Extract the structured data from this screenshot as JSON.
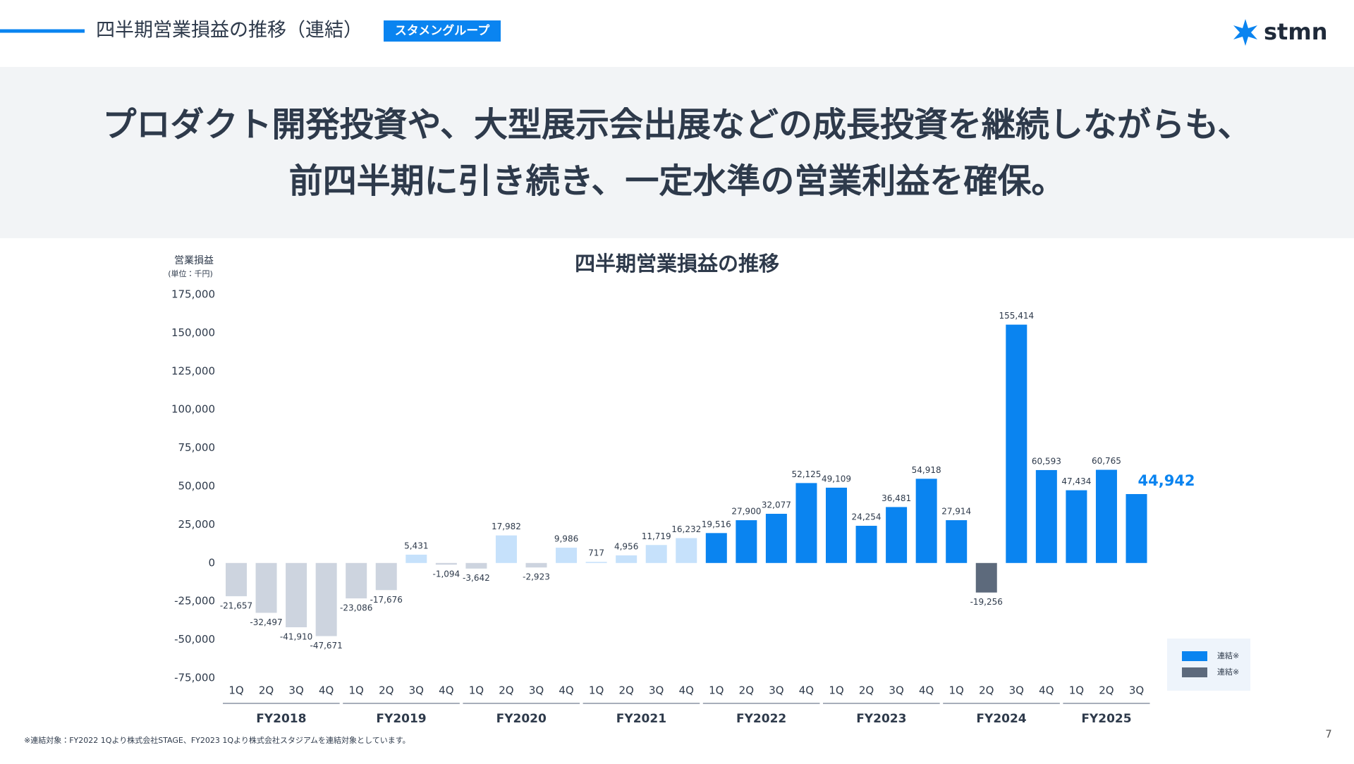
{
  "header": {
    "title": "四半期営業損益の推移（連結）",
    "badge": "スタメングループ",
    "logo": "stmn"
  },
  "headline": [
    "プロダクト開発投資や、大型展示会出展などの成長投資を継続しながらも、",
    "前四半期に引き続き、一定水準の営業利益を確保。"
  ],
  "chart_data": {
    "type": "bar",
    "title": "四半期営業損益の推移",
    "y_label": "営業損益",
    "y_unit": "(単位：千円)",
    "ylim": [
      -75000,
      175000
    ],
    "yticks": [
      {
        "value": -75000,
        "label": "-75,000"
      },
      {
        "value": -50000,
        "label": "-50,000"
      },
      {
        "value": -25000,
        "label": "-25,000"
      },
      0,
      {
        "value": 25000,
        "label": "25,000"
      },
      {
        "value": 50000,
        "label": "50,000"
      },
      {
        "value": 75000,
        "label": "75,000"
      },
      {
        "value": 100000,
        "label": "100,000"
      },
      {
        "value": 125000,
        "label": "125,000"
      },
      {
        "value": 150000,
        "label": "150,000"
      },
      {
        "value": 175000,
        "label": "175,000"
      }
    ],
    "groups": [
      {
        "name": "FY2018",
        "categories": [
          "1Q",
          "2Q",
          "3Q",
          "4Q"
        ],
        "values": [
          -21657,
          -32497,
          -41910,
          -47671
        ],
        "value_labels": [
          "-21,657",
          "-32,497",
          "-41,910",
          "-47,671"
        ],
        "colors": [
          "#cdd4df",
          "#cdd4df",
          "#cdd4df",
          "#cdd4df"
        ]
      },
      {
        "name": "FY2019",
        "categories": [
          "1Q",
          "2Q",
          "3Q",
          "4Q"
        ],
        "values": [
          -23086,
          -17676,
          5431,
          -1094
        ],
        "value_labels": [
          "-23,086",
          "-17,676",
          "5,431",
          "-1,094"
        ],
        "colors": [
          "#cdd4df",
          "#cdd4df",
          "#c6e1fb",
          "#cdd4df"
        ]
      },
      {
        "name": "FY2020",
        "categories": [
          "1Q",
          "2Q",
          "3Q",
          "4Q"
        ],
        "values": [
          -3642,
          17982,
          -2923,
          9986
        ],
        "value_labels": [
          "-3,642",
          "17,982",
          "-2,923",
          "9,986"
        ],
        "colors": [
          "#cdd4df",
          "#c6e1fb",
          "#cdd4df",
          "#c6e1fb"
        ]
      },
      {
        "name": "FY2021",
        "categories": [
          "1Q",
          "2Q",
          "3Q",
          "4Q"
        ],
        "values": [
          717,
          4956,
          11719,
          16232
        ],
        "value_labels": [
          "717",
          "4,956",
          "11,719",
          "16,232"
        ],
        "colors": [
          "#c6e1fb",
          "#c6e1fb",
          "#c6e1fb",
          "#c6e1fb"
        ]
      },
      {
        "name": "FY2022",
        "categories": [
          "1Q",
          "2Q",
          "3Q",
          "4Q"
        ],
        "values": [
          19516,
          27900,
          32077,
          52125
        ],
        "value_labels": [
          "19,516",
          "27,900",
          "32,077",
          "52,125"
        ],
        "colors": [
          "#0a84f0",
          "#0a84f0",
          "#0a84f0",
          "#0a84f0"
        ]
      },
      {
        "name": "FY2023",
        "categories": [
          "1Q",
          "2Q",
          "3Q",
          "4Q"
        ],
        "values": [
          49109,
          24254,
          36481,
          54918
        ],
        "value_labels": [
          "49,109",
          "24,254",
          "36,481",
          "54,918"
        ],
        "colors": [
          "#0a84f0",
          "#0a84f0",
          "#0a84f0",
          "#0a84f0"
        ]
      },
      {
        "name": "FY2024",
        "categories": [
          "1Q",
          "2Q",
          "3Q",
          "4Q"
        ],
        "values": [
          27914,
          -19256,
          155414,
          60593
        ],
        "value_labels": [
          "27,914",
          "-19,256",
          "155,414",
          "60,593"
        ],
        "colors": [
          "#0a84f0",
          "#5d6a7c",
          "#0a84f0",
          "#0a84f0"
        ]
      },
      {
        "name": "FY2025",
        "categories": [
          "1Q",
          "2Q",
          "3Q"
        ],
        "values": [
          47434,
          60765,
          44942
        ],
        "value_labels": [
          "47,434",
          "60,765",
          "44,942"
        ],
        "colors": [
          "#0a84f0",
          "#0a84f0",
          "#0a84f0"
        ]
      }
    ],
    "legend": [
      {
        "label": "連結※",
        "color": "#0a84f0"
      },
      {
        "label": "連結※",
        "color": "#5d6a7c"
      }
    ]
  },
  "footnote": "※連結対象：FY2022 1Qより株式会社STAGE、FY2023 1Qより株式会社スタジアムを連結対象としています。",
  "page_number": "7"
}
